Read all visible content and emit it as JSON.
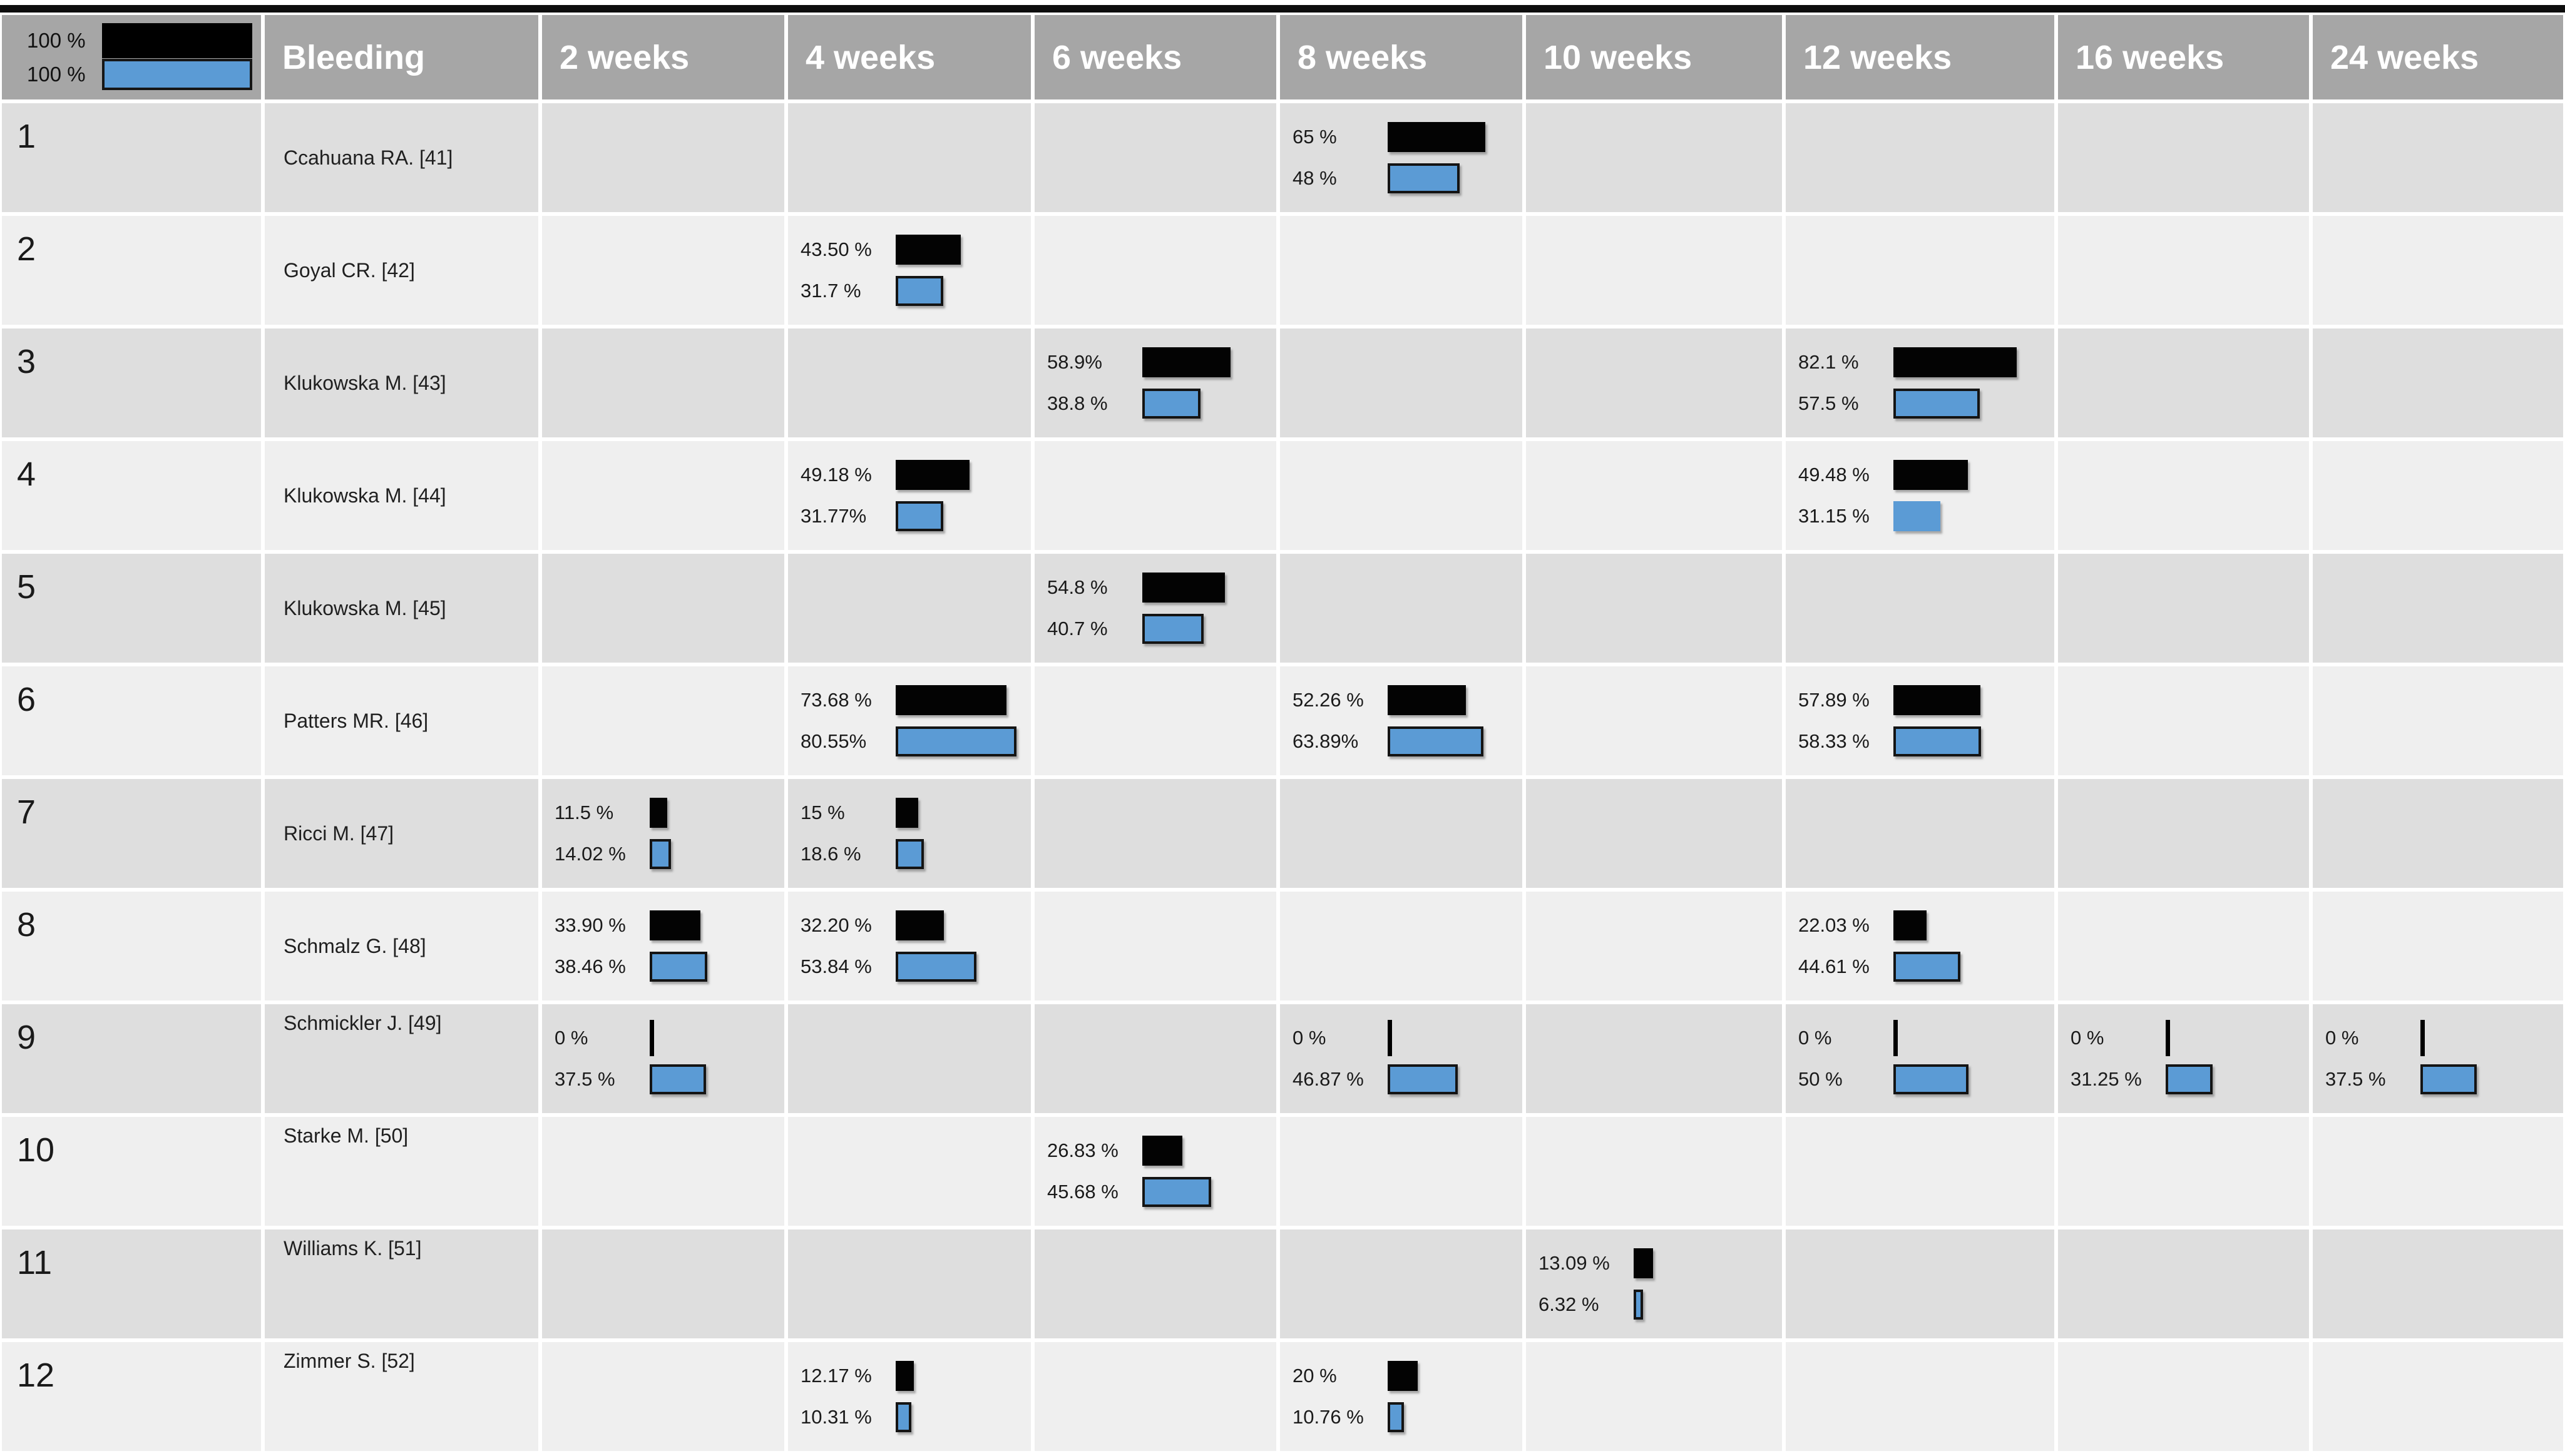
{
  "chart_data": {
    "type": "table",
    "title": "Bleeding",
    "description_colors": {
      "black_bar": "#000000",
      "blue_bar": "#5b9bd5",
      "header_bg": "#a6a6a6"
    },
    "header": {
      "legend_black_label": "100 %",
      "legend_black_value": 100,
      "legend_blue_label": "100 %",
      "legend_blue_value": 100,
      "row_header": "Bleeding",
      "time_columns": [
        "2 weeks",
        "4 weeks",
        "6 weeks",
        "8 weeks",
        "10 weeks",
        "12 weeks",
        "16 weeks",
        "24 weeks"
      ]
    },
    "rows": [
      {
        "num": 1,
        "study": "Ccahuana RA. [41]",
        "cells": [
          null,
          null,
          null,
          {
            "black_label": "65 %",
            "black_value": 65,
            "blue_label": "48 %",
            "blue_value": 48
          },
          null,
          null,
          null,
          null
        ]
      },
      {
        "num": 2,
        "study": "Goyal CR. [42]",
        "cells": [
          null,
          {
            "black_label": "43.50 %",
            "black_value": 43.5,
            "blue_label": "31.7 %",
            "blue_value": 31.7
          },
          null,
          null,
          null,
          null,
          null,
          null
        ]
      },
      {
        "num": 3,
        "study": "Klukowska M. [43]",
        "cells": [
          null,
          null,
          {
            "black_label": "58.9%",
            "black_value": 58.9,
            "blue_label": "38.8 %",
            "blue_value": 38.8
          },
          null,
          null,
          {
            "black_label": "82.1 %",
            "black_value": 82.1,
            "blue_label": "57.5 %",
            "blue_value": 57.5
          },
          null,
          null
        ]
      },
      {
        "num": 4,
        "study": "Klukowska M. [44]",
        "cells": [
          null,
          {
            "black_label": "49.18 %",
            "black_value": 49.18,
            "blue_label": "31.77%",
            "blue_value": 31.77
          },
          null,
          null,
          null,
          {
            "black_label": "49.48 %",
            "black_value": 49.48,
            "blue_label": "31.15 %",
            "blue_value": 31.15,
            "blue_border": false
          },
          null,
          null
        ]
      },
      {
        "num": 5,
        "study": "Klukowska M. [45]",
        "cells": [
          null,
          null,
          {
            "black_label": "54.8 %",
            "black_value": 54.8,
            "blue_label": "40.7 %",
            "blue_value": 40.7
          },
          null,
          null,
          null,
          null,
          null
        ]
      },
      {
        "num": 6,
        "study": "Patters MR. [46]",
        "cells": [
          null,
          {
            "black_label": "73.68 %",
            "black_value": 73.68,
            "blue_label": "80.55%",
            "blue_value": 80.55
          },
          null,
          {
            "black_label": "52.26 %",
            "black_value": 52.26,
            "blue_label": "63.89%",
            "blue_value": 63.89
          },
          null,
          {
            "black_label": "57.89 %",
            "black_value": 57.89,
            "blue_label": "58.33 %",
            "blue_value": 58.33
          },
          null,
          null
        ]
      },
      {
        "num": 7,
        "study": "Ricci M. [47]",
        "cells": [
          {
            "black_label": "11.5 %",
            "black_value": 11.5,
            "blue_label": "14.02 %",
            "blue_value": 14.02
          },
          {
            "black_label": "15 %",
            "black_value": 15,
            "blue_label": "18.6 %",
            "blue_value": 18.6
          },
          null,
          null,
          null,
          null,
          null,
          null
        ]
      },
      {
        "num": 8,
        "study": "Schmalz G. [48]",
        "cells": [
          {
            "black_label": "33.90 %",
            "black_value": 33.9,
            "blue_label": "38.46 %",
            "blue_value": 38.46
          },
          {
            "black_label": "32.20 %",
            "black_value": 32.2,
            "blue_label": "53.84 %",
            "blue_value": 53.84
          },
          null,
          null,
          null,
          {
            "black_label": "22.03 %",
            "black_value": 22.03,
            "blue_label": "44.61 %",
            "blue_value": 44.61
          },
          null,
          null
        ]
      },
      {
        "num": 9,
        "study": "Schmickler J. [49]",
        "cells": [
          {
            "black_label": "0 %",
            "black_value": 0,
            "blue_label": "37.5 %",
            "blue_value": 37.5
          },
          null,
          null,
          {
            "black_label": "0 %",
            "black_value": 0,
            "blue_label": "46.87 %",
            "blue_value": 46.87
          },
          null,
          {
            "black_label": "0 %",
            "black_value": 0,
            "blue_label": "50 %",
            "blue_value": 50
          },
          {
            "black_label": "0 %",
            "black_value": 0,
            "blue_label": "31.25 %",
            "blue_value": 31.25
          },
          {
            "black_label": "0 %",
            "black_value": 0,
            "blue_label": "37.5 %",
            "blue_value": 37.5
          }
        ]
      },
      {
        "num": 10,
        "study": "Starke M. [50]",
        "cells": [
          null,
          null,
          {
            "black_label": "26.83 %",
            "black_value": 26.83,
            "blue_label": "45.68 %",
            "blue_value": 45.68
          },
          null,
          null,
          null,
          null,
          null
        ]
      },
      {
        "num": 11,
        "study": "Williams K. [51]",
        "cells": [
          null,
          null,
          null,
          null,
          {
            "black_label": "13.09 %",
            "black_value": 13.09,
            "blue_label": "6.32 %",
            "blue_value": 6.32
          },
          null,
          null,
          null
        ]
      },
      {
        "num": 12,
        "study": "Zimmer S. [52]",
        "cells": [
          null,
          {
            "black_label": "12.17 %",
            "black_value": 12.17,
            "blue_label": "10.31 %",
            "blue_value": 10.31
          },
          null,
          {
            "black_label": "20 %",
            "black_value": 20,
            "blue_label": "10.76 %",
            "blue_value": 10.76
          },
          null,
          null,
          null,
          null
        ]
      }
    ]
  }
}
